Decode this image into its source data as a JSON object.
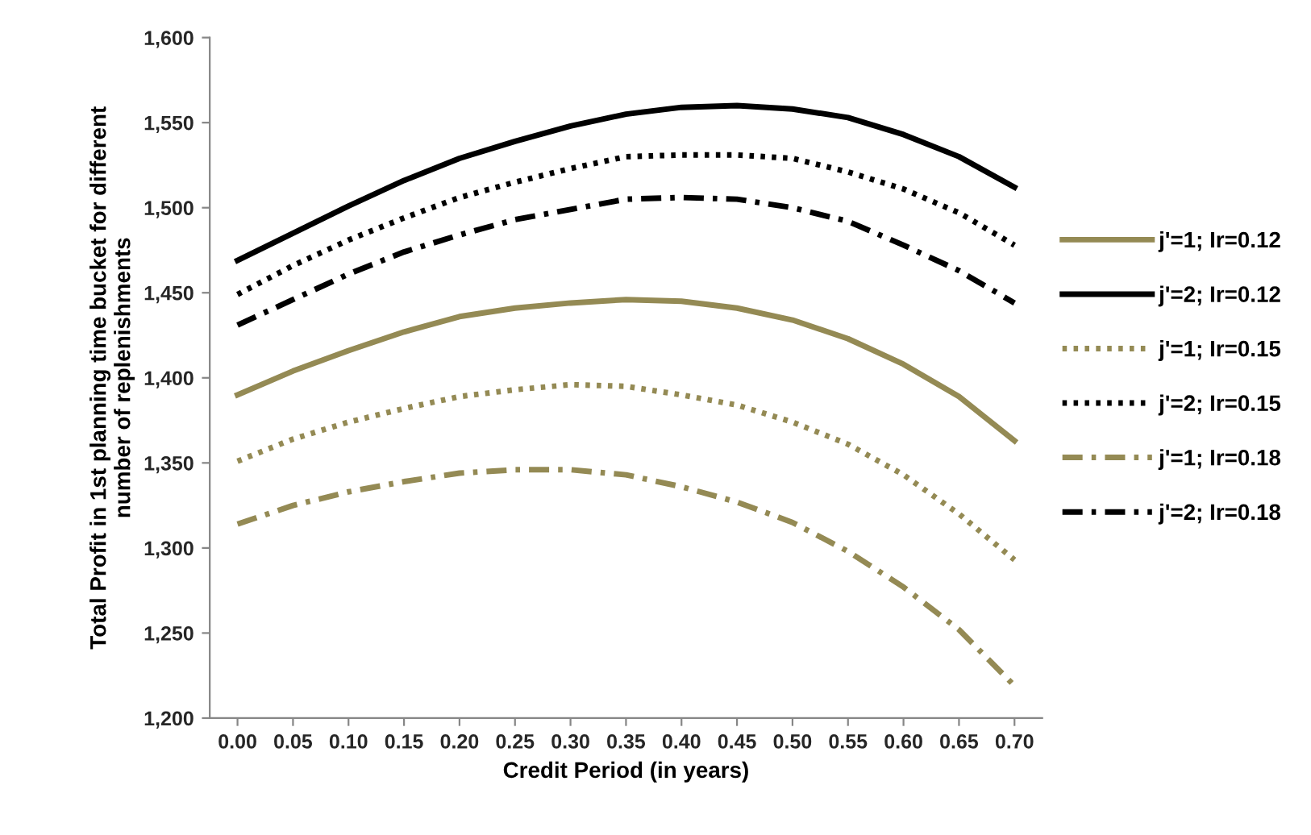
{
  "chart_data": {
    "type": "line",
    "xlabel": "Credit Period (in years)",
    "ylabel": "Total Profit in 1st planning time bucket for different\nnumber of replenishments",
    "categories": [
      "0.00",
      "0.05",
      "0.10",
      "0.15",
      "0.20",
      "0.25",
      "0.30",
      "0.35",
      "0.40",
      "0.45",
      "0.50",
      "0.55",
      "0.60",
      "0.65",
      "0.70"
    ],
    "ylim": [
      1200,
      1600
    ],
    "yticks": [
      {
        "value": 1200,
        "label": "1,200"
      },
      {
        "value": 1250,
        "label": "1,250"
      },
      {
        "value": 1300,
        "label": "1,300"
      },
      {
        "value": 1350,
        "label": "1,350"
      },
      {
        "value": 1400,
        "label": "1,400"
      },
      {
        "value": 1450,
        "label": "1,450"
      },
      {
        "value": 1500,
        "label": "1,500"
      },
      {
        "value": 1550,
        "label": "1,550"
      },
      {
        "value": 1600,
        "label": "1,600"
      }
    ],
    "grid": false,
    "legend": "right",
    "marker": "none",
    "series": [
      {
        "name": "j'=1; Ir=0.12",
        "color": "#948a54",
        "line_style": "solid",
        "values": [
          1390,
          1404,
          1416,
          1427,
          1436,
          1441,
          1444,
          1446,
          1445,
          1441,
          1434,
          1423,
          1408,
          1389,
          1363
        ]
      },
      {
        "name": "j'=2; Ir=0.12",
        "color": "#000000",
        "line_style": "solid",
        "values": [
          1469,
          1485,
          1501,
          1516,
          1529,
          1539,
          1548,
          1555,
          1559,
          1560,
          1558,
          1553,
          1543,
          1530,
          1512
        ]
      },
      {
        "name": "j'=1; Ir=0.15",
        "color": "#948a54",
        "line_style": "dotted",
        "values": [
          1351,
          1364,
          1374,
          1382,
          1389,
          1393,
          1396,
          1395,
          1390,
          1384,
          1374,
          1361,
          1343,
          1320,
          1293
        ]
      },
      {
        "name": "j'=2; Ir=0.15",
        "color": "#000000",
        "line_style": "dotted",
        "values": [
          1449,
          1466,
          1481,
          1494,
          1506,
          1515,
          1523,
          1530,
          1531,
          1531,
          1529,
          1521,
          1511,
          1497,
          1478
        ]
      },
      {
        "name": "j'=1; Ir=0.18",
        "color": "#948a54",
        "line_style": "dashdot",
        "values": [
          1314,
          1325,
          1333,
          1339,
          1344,
          1346,
          1346,
          1343,
          1336,
          1327,
          1315,
          1298,
          1277,
          1252,
          1219
        ]
      },
      {
        "name": "j'=2; Ir=0.18",
        "color": "#000000",
        "line_style": "dashdot",
        "values": [
          1431,
          1446,
          1461,
          1474,
          1484,
          1493,
          1499,
          1505,
          1506,
          1505,
          1500,
          1492,
          1478,
          1463,
          1444
        ]
      }
    ]
  }
}
